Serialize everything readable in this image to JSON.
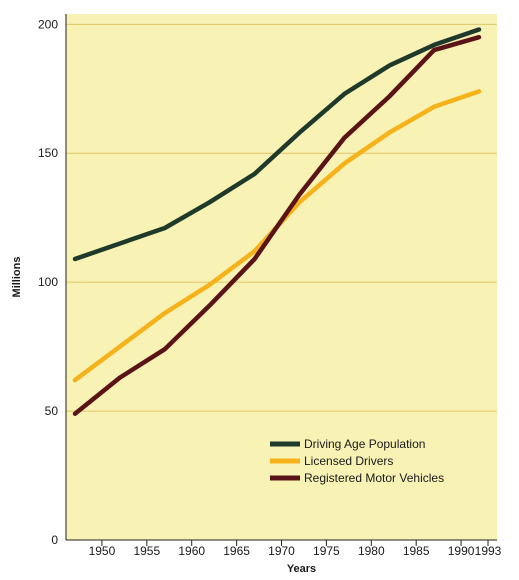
{
  "chart_data": {
    "type": "line",
    "title": "",
    "xlabel": "Years",
    "ylabel": "Millions",
    "x_ticks": [
      "1950",
      "1955",
      "1960",
      "1965",
      "1970",
      "1975",
      "1980",
      "1985",
      "1990",
      "1993"
    ],
    "y_ticks": [
      "0",
      "50",
      "100",
      "150",
      "200"
    ],
    "xlim": [
      1946,
      1994
    ],
    "ylim": [
      0,
      204
    ],
    "grid": "horizontal",
    "legend_position": "bottom-right",
    "background_color": "#f8f2b4",
    "grid_color": "#e0c667",
    "series": [
      {
        "name": "Driving Age Population",
        "color": "#1f3a2a",
        "points": [
          [
            1947,
            109
          ],
          [
            1952,
            115
          ],
          [
            1957,
            121
          ],
          [
            1962,
            131
          ],
          [
            1967,
            142
          ],
          [
            1972,
            158
          ],
          [
            1977,
            173
          ],
          [
            1982,
            184
          ],
          [
            1987,
            192
          ],
          [
            1992,
            198
          ]
        ]
      },
      {
        "name": "Licensed Drivers",
        "color": "#f5b21a",
        "points": [
          [
            1947,
            62
          ],
          [
            1952,
            75
          ],
          [
            1957,
            88
          ],
          [
            1962,
            99
          ],
          [
            1967,
            112
          ],
          [
            1972,
            131
          ],
          [
            1977,
            146
          ],
          [
            1982,
            158
          ],
          [
            1987,
            168
          ],
          [
            1992,
            174
          ]
        ]
      },
      {
        "name": "Registered Motor Vehicles",
        "color": "#5a1418",
        "points": [
          [
            1947,
            49
          ],
          [
            1952,
            63
          ],
          [
            1957,
            74
          ],
          [
            1962,
            91
          ],
          [
            1967,
            109
          ],
          [
            1972,
            134
          ],
          [
            1977,
            156
          ],
          [
            1982,
            172
          ],
          [
            1987,
            190
          ],
          [
            1992,
            195
          ]
        ]
      }
    ]
  }
}
